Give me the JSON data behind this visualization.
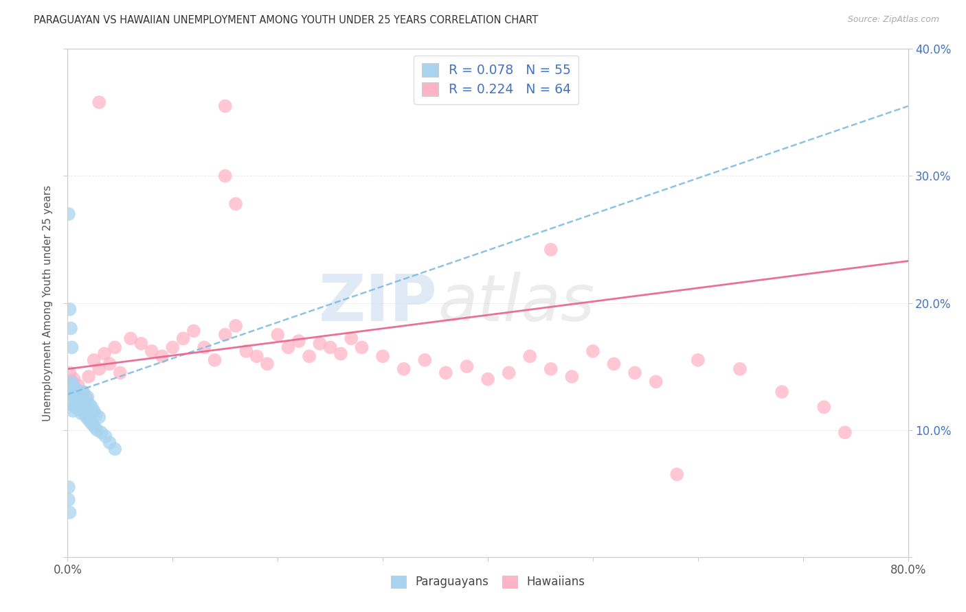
{
  "title": "PARAGUAYAN VS HAWAIIAN UNEMPLOYMENT AMONG YOUTH UNDER 25 YEARS CORRELATION CHART",
  "source": "Source: ZipAtlas.com",
  "ylabel": "Unemployment Among Youth under 25 years",
  "watermark_zip": "ZIP",
  "watermark_atlas": "atlas",
  "blue_scatter_color": "#a8d4f0",
  "blue_line_color": "#7fbde0",
  "pink_scatter_color": "#ffb3c6",
  "pink_line_color": "#e8608a",
  "right_ytick_color": "#4472c4",
  "legend_text_color": "#4472c4",
  "title_color": "#333333",
  "source_color": "#aaaaaa",
  "ylabel_color": "#555555",
  "grid_color": "#e8e8e8",
  "x_min": 0.0,
  "x_max": 0.8,
  "y_min": 0.0,
  "y_max": 0.4,
  "blue_trend_start": 0.128,
  "blue_trend_end": 0.355,
  "pink_trend_start": 0.148,
  "pink_trend_end": 0.233,
  "par_x": [
    0.002,
    0.003,
    0.004,
    0.005,
    0.005,
    0.006,
    0.007,
    0.008,
    0.008,
    0.009,
    0.01,
    0.01,
    0.011,
    0.012,
    0.012,
    0.013,
    0.014,
    0.015,
    0.015,
    0.016,
    0.017,
    0.018,
    0.019,
    0.02,
    0.021,
    0.022,
    0.023,
    0.025,
    0.027,
    0.03,
    0.003,
    0.004,
    0.006,
    0.008,
    0.01,
    0.012,
    0.014,
    0.016,
    0.018,
    0.02,
    0.022,
    0.024,
    0.026,
    0.028,
    0.032,
    0.036,
    0.04,
    0.045,
    0.001,
    0.002,
    0.003,
    0.004,
    0.001,
    0.001,
    0.002
  ],
  "par_y": [
    0.12,
    0.13,
    0.135,
    0.128,
    0.115,
    0.122,
    0.118,
    0.126,
    0.132,
    0.119,
    0.124,
    0.131,
    0.116,
    0.128,
    0.12,
    0.113,
    0.125,
    0.118,
    0.13,
    0.122,
    0.115,
    0.119,
    0.126,
    0.113,
    0.12,
    0.114,
    0.118,
    0.115,
    0.112,
    0.11,
    0.135,
    0.138,
    0.13,
    0.125,
    0.12,
    0.118,
    0.115,
    0.113,
    0.11,
    0.108,
    0.106,
    0.104,
    0.102,
    0.1,
    0.098,
    0.095,
    0.09,
    0.085,
    0.27,
    0.195,
    0.18,
    0.165,
    0.055,
    0.045,
    0.035
  ],
  "haw_x": [
    0.002,
    0.004,
    0.006,
    0.008,
    0.01,
    0.012,
    0.014,
    0.016,
    0.018,
    0.02,
    0.025,
    0.03,
    0.035,
    0.04,
    0.045,
    0.05,
    0.06,
    0.07,
    0.08,
    0.09,
    0.1,
    0.11,
    0.12,
    0.13,
    0.14,
    0.15,
    0.16,
    0.17,
    0.18,
    0.19,
    0.2,
    0.21,
    0.22,
    0.23,
    0.24,
    0.25,
    0.26,
    0.27,
    0.28,
    0.3,
    0.32,
    0.34,
    0.36,
    0.38,
    0.4,
    0.42,
    0.44,
    0.46,
    0.48,
    0.5,
    0.52,
    0.54,
    0.56,
    0.6,
    0.64,
    0.68,
    0.72,
    0.74,
    0.58,
    0.03,
    0.15,
    0.16,
    0.46,
    0.15
  ],
  "haw_y": [
    0.145,
    0.138,
    0.14,
    0.132,
    0.135,
    0.128,
    0.13,
    0.122,
    0.125,
    0.142,
    0.155,
    0.148,
    0.16,
    0.152,
    0.165,
    0.145,
    0.172,
    0.168,
    0.162,
    0.158,
    0.165,
    0.172,
    0.178,
    0.165,
    0.155,
    0.175,
    0.182,
    0.162,
    0.158,
    0.152,
    0.175,
    0.165,
    0.17,
    0.158,
    0.168,
    0.165,
    0.16,
    0.172,
    0.165,
    0.158,
    0.148,
    0.155,
    0.145,
    0.15,
    0.14,
    0.145,
    0.158,
    0.148,
    0.142,
    0.162,
    0.152,
    0.145,
    0.138,
    0.155,
    0.148,
    0.13,
    0.118,
    0.098,
    0.065,
    0.358,
    0.355,
    0.278,
    0.242,
    0.3
  ]
}
